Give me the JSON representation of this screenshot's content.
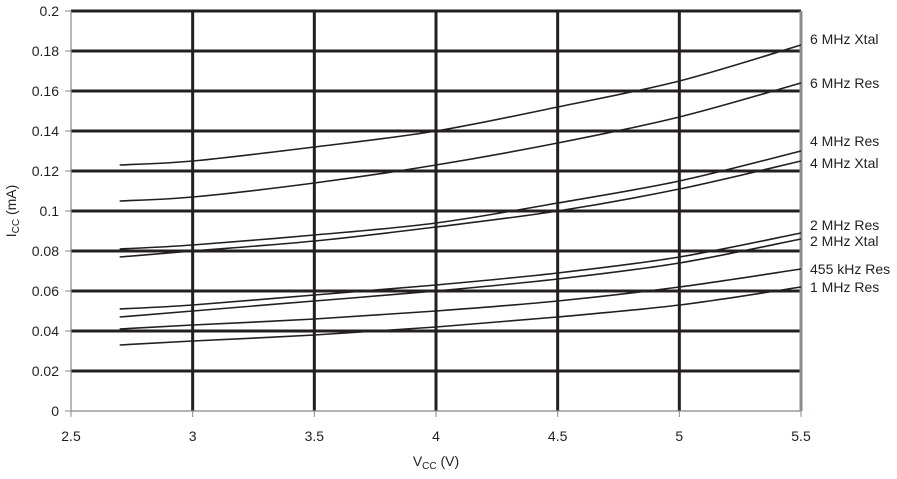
{
  "chart_data": {
    "type": "line",
    "title": "",
    "xlabel": {
      "main": "V",
      "sub": "CC",
      "unit": " (V)"
    },
    "ylabel": {
      "main": "I",
      "sub": "CC",
      "unit": " (mA)"
    },
    "xlim": [
      2.5,
      5.5
    ],
    "ylim": [
      0,
      0.2
    ],
    "xticks": [
      "2.5",
      "3",
      "3.5",
      "4",
      "4.5",
      "5",
      "5.5"
    ],
    "yticks": [
      "0",
      "0.02",
      "0.04",
      "0.06",
      "0.08",
      "0.1",
      "0.12",
      "0.14",
      "0.16",
      "0.18",
      "0.2"
    ],
    "grid": true,
    "legend": "inline-right",
    "x": [
      2.7,
      3.0,
      3.5,
      4.0,
      4.5,
      5.0,
      5.5
    ],
    "series": [
      {
        "name": "6 MHz Xtal",
        "values": [
          0.123,
          0.125,
          0.132,
          0.14,
          0.152,
          0.165,
          0.183
        ]
      },
      {
        "name": "6 MHz Res",
        "values": [
          0.105,
          0.107,
          0.114,
          0.123,
          0.134,
          0.147,
          0.164
        ]
      },
      {
        "name": "4 MHz Res",
        "values": [
          0.081,
          0.083,
          0.088,
          0.094,
          0.104,
          0.115,
          0.13
        ]
      },
      {
        "name": "4 MHz Xtal",
        "values": [
          0.077,
          0.08,
          0.085,
          0.092,
          0.1,
          0.111,
          0.125
        ]
      },
      {
        "name": "2 MHz Res",
        "values": [
          0.051,
          0.053,
          0.058,
          0.063,
          0.069,
          0.077,
          0.089
        ]
      },
      {
        "name": "2 MHz Xtal",
        "values": [
          0.047,
          0.05,
          0.055,
          0.06,
          0.066,
          0.074,
          0.086
        ]
      },
      {
        "name": "455 kHz Res",
        "values": [
          0.041,
          0.043,
          0.046,
          0.05,
          0.055,
          0.062,
          0.071
        ]
      },
      {
        "name": "1 MHz Res",
        "values": [
          0.033,
          0.035,
          0.038,
          0.042,
          0.047,
          0.053,
          0.062
        ]
      }
    ]
  }
}
